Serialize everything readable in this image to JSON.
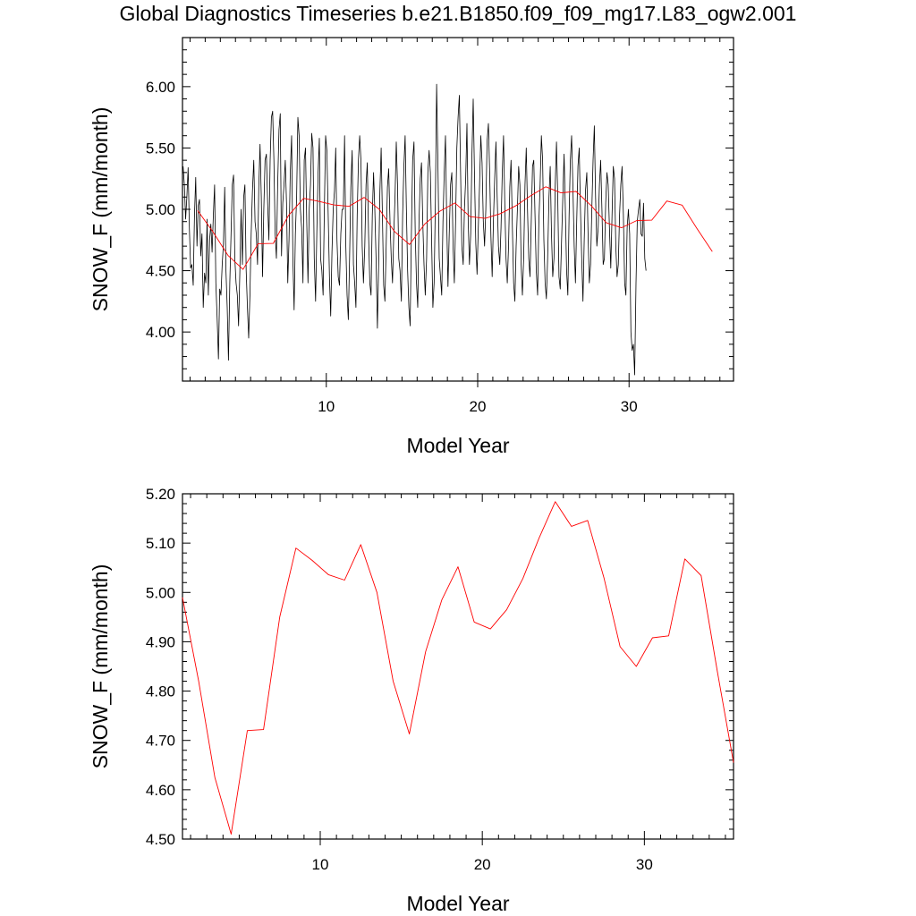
{
  "title": "Global Diagnostics Timeseries b.e21.B1850.f09_f09_mg17.L83_ogw2.001",
  "colors": {
    "monthly": "#000000",
    "annual": "#ff0000",
    "axis": "#000000"
  },
  "chart_data": [
    {
      "type": "line",
      "xlabel": "Model Year",
      "ylabel": "SNOW_F (mm/month)",
      "xlim": [
        0.5,
        36.9
      ],
      "ylim": [
        3.6,
        6.4
      ],
      "xticks": [
        10,
        20,
        30
      ],
      "xtick_labels": [
        "10",
        "20",
        "30"
      ],
      "yticks": [
        4.0,
        4.5,
        5.0,
        5.5,
        6.0
      ],
      "ytick_labels": [
        "4.00",
        "4.50",
        "5.00",
        "5.50",
        "6.00"
      ],
      "grid": false,
      "series": [
        {
          "role": "monthly",
          "x_start": 0.54,
          "x_step": 0.0833333,
          "values": [
            5.35,
            5.2,
            4.92,
            5.1,
            5.34,
            4.85,
            4.52,
            4.55,
            4.38,
            4.95,
            5.26,
            4.7,
            5.03,
            5.08,
            4.62,
            4.8,
            4.2,
            4.48,
            4.4,
            4.92,
            4.3,
            4.75,
            4.88,
            4.65,
            4.95,
            5.2,
            4.4,
            4.1,
            3.78,
            4.35,
            4.3,
            4.55,
            4.72,
            5.18,
            4.5,
            4.2,
            3.77,
            4.4,
            4.8,
            5.2,
            5.28,
            4.6,
            4.4,
            4.3,
            4.05,
            4.48,
            5.0,
            4.55,
            5.1,
            5.2,
            4.5,
            4.2,
            3.95,
            4.3,
            4.8,
            5.15,
            5.4,
            4.9,
            4.8,
            4.55,
            5.18,
            5.53,
            5.1,
            4.45,
            5.0,
            5.4,
            5.45,
            5.05,
            4.75,
            5.4,
            5.75,
            5.8,
            5.4,
            4.8,
            4.6,
            5.2,
            5.65,
            5.78,
            4.62,
            5.05,
            5.2,
            5.4,
            5.05,
            4.4,
            4.75,
            5.3,
            5.6,
            4.6,
            4.18,
            4.8,
            5.1,
            5.75,
            5.6,
            5.0,
            4.85,
            4.4,
            5.4,
            5.5,
            4.9,
            4.4,
            5.0,
            5.2,
            5.62,
            5.5,
            4.6,
            4.25,
            4.82,
            5.3,
            5.58,
            4.6,
            4.5,
            4.3,
            5.0,
            5.6,
            5.48,
            4.95,
            4.45,
            4.13,
            4.65,
            5.0,
            5.15,
            5.5,
            4.75,
            4.45,
            4.38,
            4.8,
            5.0,
            5.0,
            5.6,
            4.7,
            4.3,
            4.1,
            4.6,
            5.18,
            5.48,
            4.55,
            4.4,
            4.2,
            4.95,
            5.4,
            5.6,
            5.4,
            4.7,
            4.4,
            4.7,
            5.2,
            5.38,
            4.8,
            4.4,
            4.3,
            4.95,
            5.3,
            5.0,
            4.6,
            4.03,
            4.55,
            5.15,
            5.5,
            4.95,
            4.38,
            4.25,
            4.7,
            5.18,
            5.33,
            4.9,
            4.6,
            4.4,
            4.8,
            5.1,
            5.55,
            5.2,
            4.6,
            4.5,
            4.25,
            4.95,
            5.35,
            5.6,
            5.0,
            4.5,
            4.2,
            4.05,
            4.8,
            5.4,
            5.55,
            4.8,
            4.4,
            4.2,
            4.9,
            5.25,
            5.38,
            4.9,
            4.55,
            4.3,
            4.6,
            5.3,
            5.48,
            5.3,
            4.75,
            4.2,
            4.4,
            5.05,
            6.02,
            5.4,
            4.6,
            4.45,
            4.3,
            4.9,
            5.3,
            5.6,
            4.9,
            4.37,
            4.8,
            5.2,
            5.3,
            4.7,
            4.4,
            4.9,
            5.5,
            5.75,
            5.93,
            5.3,
            4.7,
            4.55,
            5.0,
            5.25,
            5.7,
            4.9,
            4.55,
            4.8,
            5.45,
            5.9,
            5.3,
            4.72,
            4.47,
            4.85,
            5.2,
            5.6,
            5.38,
            4.9,
            4.7,
            5.0,
            5.55,
            5.7,
            5.3,
            4.78,
            4.45,
            4.9,
            5.25,
            5.55,
            5.1,
            4.7,
            4.55,
            4.85,
            5.3,
            5.6,
            5.05,
            4.6,
            4.4,
            4.7,
            5.18,
            5.4,
            4.85,
            4.4,
            4.25,
            4.7,
            5.0,
            5.35,
            5.2,
            4.55,
            4.3,
            4.6,
            5.2,
            5.5,
            5.0,
            4.6,
            4.45,
            4.9,
            5.35,
            5.4,
            4.95,
            4.5,
            4.3,
            4.9,
            5.2,
            5.6,
            5.4,
            4.75,
            4.4,
            4.27,
            4.6,
            5.1,
            5.35,
            4.8,
            4.45,
            4.6,
            5.2,
            5.55,
            5.1,
            4.45,
            4.35,
            4.75,
            5.1,
            5.45,
            5.0,
            4.5,
            4.3,
            4.95,
            5.4,
            5.6,
            5.2,
            4.7,
            4.4,
            4.9,
            5.35,
            5.5,
            5.0,
            4.6,
            4.25,
            4.75,
            5.15,
            5.3,
            4.8,
            4.4,
            4.55,
            5.0,
            5.4,
            5.68,
            5.1,
            4.7,
            4.85,
            5.2,
            5.4,
            5.0,
            4.55,
            4.6,
            5.05,
            5.3,
            5.2,
            4.85,
            4.52,
            4.95,
            5.35,
            5.25,
            4.7,
            4.45,
            4.55,
            4.95,
            5.2,
            5.35,
            4.95,
            4.4,
            4.3,
            4.85,
            5.0,
            4.8,
            4.0,
            3.85,
            3.9,
            3.65,
            4.4,
            4.9,
            5.0,
            5.08,
            4.8,
            4.78,
            5.05,
            4.6,
            4.5
          ]
        },
        {
          "role": "annual",
          "x": [
            1.5,
            2.5,
            3.5,
            4.5,
            5.5,
            6.5,
            7.5,
            8.5,
            9.5,
            10.5,
            11.5,
            12.5,
            13.5,
            14.5,
            15.5,
            16.5,
            17.5,
            18.5,
            19.5,
            20.5,
            21.5,
            22.5,
            23.5,
            24.5,
            25.5,
            26.5,
            27.5,
            28.5,
            29.5,
            30.5,
            31.5,
            32.5,
            33.5,
            34.5,
            35.5
          ],
          "values": [
            4.99,
            4.82,
            4.625,
            4.51,
            4.72,
            4.722,
            4.95,
            5.09,
            5.065,
            5.036,
            5.025,
            5.097,
            5.0,
            4.82,
            4.713,
            4.88,
            4.985,
            5.052,
            4.94,
            4.926,
            4.965,
            5.028,
            5.11,
            5.184,
            5.134,
            5.146,
            5.03,
            4.89,
            4.85,
            4.908,
            4.912,
            5.068,
            5.034,
            4.84,
            4.655
          ]
        }
      ]
    },
    {
      "type": "line",
      "xlabel": "Model Year",
      "ylabel": "SNOW_F (mm/month)",
      "xlim": [
        1.5,
        35.5
      ],
      "ylim": [
        4.5,
        5.2
      ],
      "xticks": [
        10,
        20,
        30
      ],
      "xtick_labels": [
        "10",
        "20",
        "30"
      ],
      "yticks": [
        4.5,
        4.6,
        4.7,
        4.8,
        4.9,
        5.0,
        5.1,
        5.2
      ],
      "ytick_labels": [
        "4.50",
        "4.60",
        "4.70",
        "4.80",
        "4.90",
        "5.00",
        "5.10",
        "5.20"
      ],
      "grid": false,
      "series": [
        {
          "role": "annual",
          "x": [
            1.5,
            2.5,
            3.5,
            4.5,
            5.5,
            6.5,
            7.5,
            8.5,
            9.5,
            10.5,
            11.5,
            12.5,
            13.5,
            14.5,
            15.5,
            16.5,
            17.5,
            18.5,
            19.5,
            20.5,
            21.5,
            22.5,
            23.5,
            24.5,
            25.5,
            26.5,
            27.5,
            28.5,
            29.5,
            30.5,
            31.5,
            32.5,
            33.5,
            34.5,
            35.5
          ],
          "values": [
            4.99,
            4.82,
            4.625,
            4.51,
            4.72,
            4.722,
            4.95,
            5.09,
            5.065,
            5.036,
            5.025,
            5.097,
            5.0,
            4.82,
            4.713,
            4.88,
            4.985,
            5.052,
            4.94,
            4.926,
            4.965,
            5.028,
            5.11,
            5.184,
            5.134,
            5.146,
            5.03,
            4.89,
            4.85,
            4.908,
            4.912,
            5.068,
            5.034,
            4.84,
            4.655
          ]
        }
      ]
    }
  ]
}
